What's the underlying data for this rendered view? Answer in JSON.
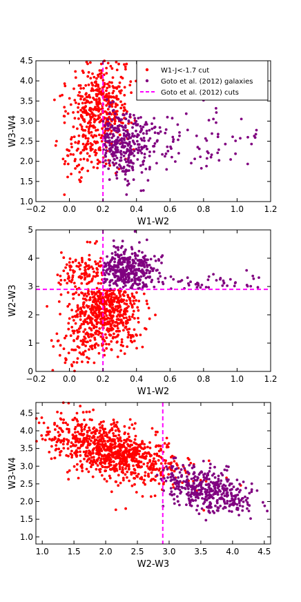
{
  "colors": {
    "cut": "#ff0000",
    "galaxies": "#800080",
    "cuts_line": "#ff00ff",
    "frame": "#000000",
    "background": "#ffffff"
  },
  "legend": {
    "placement": "top-right of panel 1",
    "entries": [
      {
        "label": "W1-J<-1.7 cut",
        "marker": "dot",
        "color": "#ff0000"
      },
      {
        "label": "Goto et al. (2012) galaxies",
        "marker": "dot",
        "color": "#800080"
      },
      {
        "label": "Goto et al. (2012) cuts",
        "marker": "dashed-line",
        "color": "#ff00ff"
      }
    ]
  },
  "chart_data": [
    {
      "type": "scatter",
      "title": "",
      "xlabel": "W1-W2",
      "ylabel": "W3-W4",
      "xlim": [
        -0.2,
        1.2
      ],
      "ylim": [
        1.0,
        4.5
      ],
      "xticks": [
        "−0.2",
        "0.0",
        "0.2",
        "0.4",
        "0.6",
        "0.8",
        "1.0",
        "1.2"
      ],
      "yticks": [
        "1.0",
        "1.5",
        "2.0",
        "2.5",
        "3.0",
        "3.5",
        "4.0",
        "4.5"
      ],
      "vlines": [
        0.2
      ],
      "hlines": [],
      "series": [
        {
          "name": "W1-J<-1.7 cut",
          "color": "#ff0000",
          "cloud": {
            "mx": 0.18,
            "sx": 0.09,
            "my": 3.35,
            "sy": 0.55,
            "n": 420
          }
        },
        {
          "name": "W1-J<-1.7 cut",
          "color": "#ff0000",
          "cloud": {
            "mx": 0.12,
            "sx": 0.09,
            "my": 2.2,
            "sy": 0.4,
            "n": 90
          }
        },
        {
          "name": "Goto et al. (2012) galaxies",
          "color": "#800080",
          "cloud": {
            "mx": 0.33,
            "sx": 0.1,
            "my": 2.4,
            "sy": 0.42,
            "xmin": 0.2,
            "n": 330
          }
        },
        {
          "name": "Goto et al. (2012) galaxies",
          "color": "#800080",
          "cloud": {
            "mx": 0.8,
            "sx": 0.2,
            "my": 2.55,
            "sy": 0.35,
            "xmin": 0.5,
            "n": 60
          }
        }
      ]
    },
    {
      "type": "scatter",
      "title": "",
      "xlabel": "W1-W2",
      "ylabel": "W2-W3",
      "xlim": [
        -0.2,
        1.2
      ],
      "ylim": [
        0,
        5
      ],
      "xticks": [
        "−0.2",
        "0.0",
        "0.2",
        "0.4",
        "0.6",
        "0.8",
        "1.0",
        "1.2"
      ],
      "yticks": [
        "0",
        "1",
        "2",
        "3",
        "4",
        "5"
      ],
      "vlines": [
        0.2
      ],
      "hlines": [
        2.9
      ],
      "series": [
        {
          "name": "W1-J<-1.7 cut",
          "color": "#ff0000",
          "cloud": {
            "mx": 0.22,
            "sx": 0.1,
            "my": 2.2,
            "sy": 0.65,
            "ymax": 2.9,
            "n": 600
          }
        },
        {
          "name": "W1-J<-1.7 cut",
          "color": "#ff0000",
          "cloud": {
            "mx": 0.1,
            "sx": 0.09,
            "my": 3.4,
            "sy": 0.45,
            "xmax": 0.2,
            "ymin": 2.9,
            "n": 110
          }
        },
        {
          "name": "W1-J<-1.7 cut",
          "color": "#ff0000",
          "cloud": {
            "mx": 0.05,
            "sx": 0.08,
            "my": 0.9,
            "sy": 0.45,
            "n": 60
          }
        },
        {
          "name": "Goto et al. (2012) galaxies",
          "color": "#800080",
          "cloud": {
            "mx": 0.33,
            "sx": 0.1,
            "my": 3.55,
            "sy": 0.4,
            "xmin": 0.2,
            "ymin": 2.9,
            "n": 380
          }
        },
        {
          "name": "Goto et al. (2012) galaxies",
          "color": "#800080",
          "cloud": {
            "mx": 0.85,
            "sx": 0.18,
            "my": 3.1,
            "sy": 0.2,
            "xmin": 0.55,
            "ymin": 2.9,
            "n": 45
          }
        }
      ]
    },
    {
      "type": "scatter",
      "title": "",
      "xlabel": "W2-W3",
      "ylabel": "W3-W4",
      "xlim": [
        0.9,
        4.6
      ],
      "ylim": [
        0.8,
        4.8
      ],
      "xticks": [
        "1.0",
        "1.5",
        "2.0",
        "2.5",
        "3.0",
        "3.5",
        "4.0",
        "4.5"
      ],
      "yticks": [
        "1.0",
        "1.5",
        "2.0",
        "2.5",
        "3.0",
        "3.5",
        "4.0",
        "4.5"
      ],
      "vlines": [
        2.9
      ],
      "hlines": [],
      "series": [
        {
          "name": "W1-J<-1.7 cut",
          "color": "#ff0000",
          "cloud": {
            "mx": 2.1,
            "sx": 0.5,
            "my": 3.4,
            "sy": 0.4,
            "xmin": 0.9,
            "n": 900,
            "slope": -0.45,
            "pivot": 2.1
          }
        },
        {
          "name": "Goto et al. (2012) galaxies",
          "color": "#800080",
          "cloud": {
            "mx": 3.6,
            "sx": 0.38,
            "my": 2.3,
            "sy": 0.3,
            "xmin": 2.8,
            "n": 420,
            "slope": -0.5,
            "pivot": 3.6
          }
        }
      ]
    }
  ]
}
